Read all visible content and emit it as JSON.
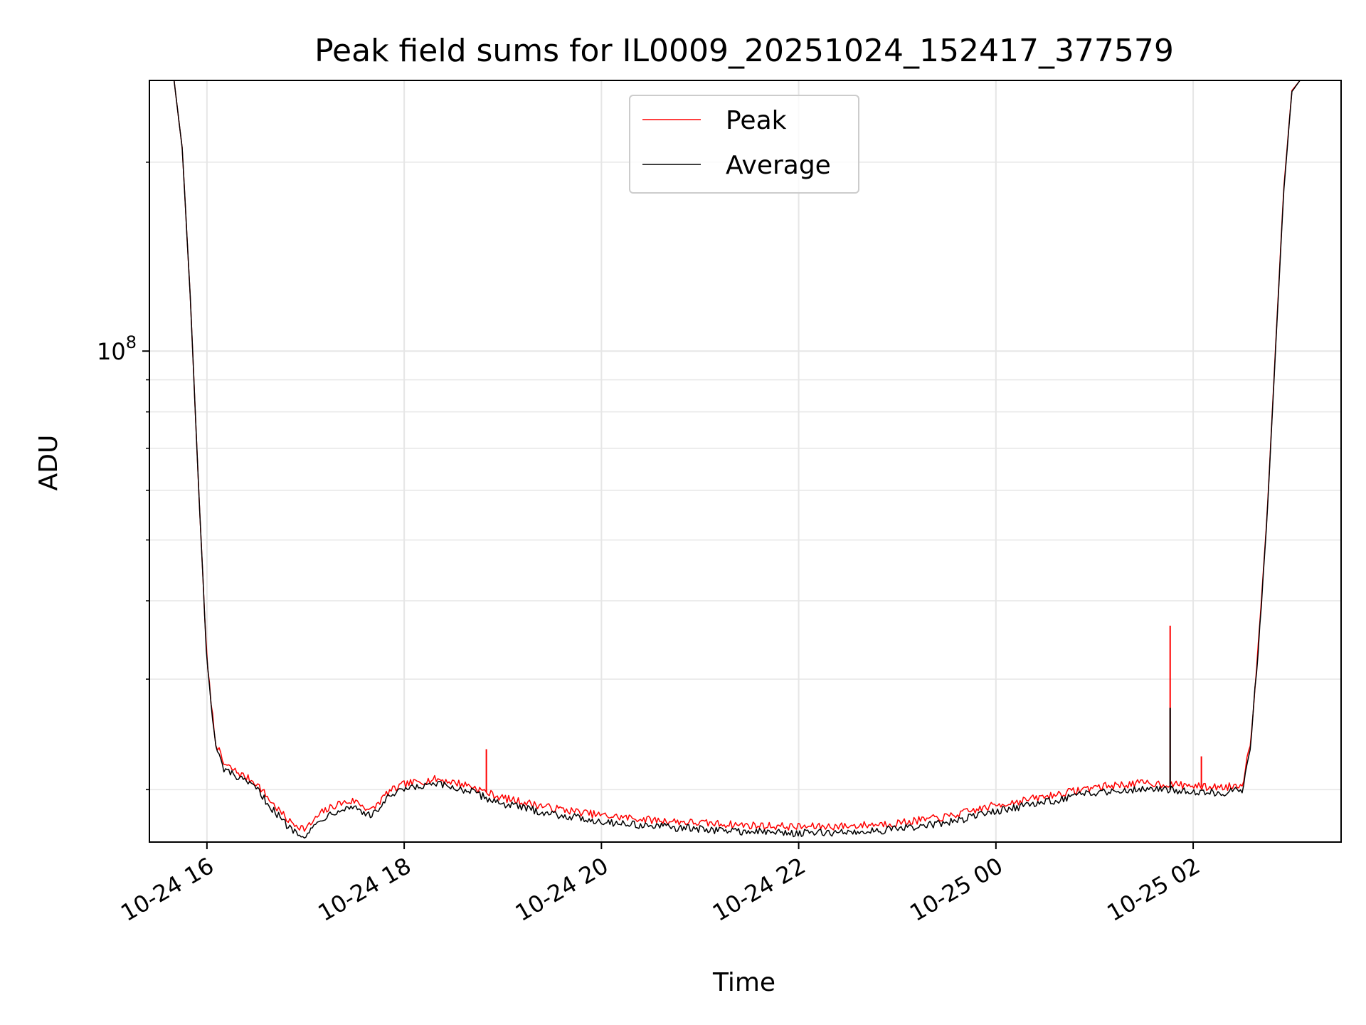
{
  "chart_data": {
    "type": "line",
    "title": "Peak field sums for IL0009_20251024_152417_377579",
    "xlabel": "Time",
    "ylabel": "ADU",
    "y_scale": "log",
    "grid": true,
    "legend_position": "top-center",
    "x_range": [
      "2025-10-24 15:25",
      "2025-10-25 03:30"
    ],
    "ylim": [
      16500000,
      270000000
    ],
    "x_ticks": [
      {
        "label": "10-24 16",
        "value": "2025-10-24 16:00"
      },
      {
        "label": "10-24 18",
        "value": "2025-10-24 18:00"
      },
      {
        "label": "10-24 20",
        "value": "2025-10-24 20:00"
      },
      {
        "label": "10-24 22",
        "value": "2025-10-24 22:00"
      },
      {
        "label": "10-25 00",
        "value": "2025-10-25 00:00"
      },
      {
        "label": "10-25 02",
        "value": "2025-10-25 02:00"
      }
    ],
    "y_ticks": [
      {
        "base": "10",
        "exp": "8",
        "value": 100000000
      }
    ],
    "x": [
      "2025-10-24 15:40",
      "2025-10-24 15:45",
      "2025-10-24 15:50",
      "2025-10-24 15:55",
      "2025-10-24 16:00",
      "2025-10-24 16:05",
      "2025-10-24 16:10",
      "2025-10-24 16:20",
      "2025-10-24 16:30",
      "2025-10-24 16:40",
      "2025-10-24 16:50",
      "2025-10-24 17:00",
      "2025-10-24 17:10",
      "2025-10-24 17:20",
      "2025-10-24 17:30",
      "2025-10-24 17:40",
      "2025-10-24 17:50",
      "2025-10-24 18:00",
      "2025-10-24 18:20",
      "2025-10-24 18:40",
      "2025-10-24 18:50",
      "2025-10-24 19:00",
      "2025-10-24 19:30",
      "2025-10-24 20:00",
      "2025-10-24 20:30",
      "2025-10-24 21:00",
      "2025-10-24 21:30",
      "2025-10-24 22:00",
      "2025-10-24 22:30",
      "2025-10-24 23:00",
      "2025-10-24 23:30",
      "2025-10-25 00:00",
      "2025-10-25 00:30",
      "2025-10-25 01:00",
      "2025-10-25 01:30",
      "2025-10-25 01:45",
      "2025-10-25 02:00",
      "2025-10-25 02:05",
      "2025-10-25 02:20",
      "2025-10-25 02:30",
      "2025-10-25 02:35",
      "2025-10-25 02:40",
      "2025-10-25 02:45",
      "2025-10-25 02:50",
      "2025-10-25 02:55",
      "2025-10-25 03:00",
      "2025-10-25 03:05"
    ],
    "series": [
      {
        "name": "Peak",
        "color": "#ff0000",
        "values": [
          270000000,
          210000000,
          120000000,
          60000000,
          32000000,
          24000000,
          22000000,
          21200000,
          20500000,
          19000000,
          17800000,
          17300000,
          18400000,
          19000000,
          19200000,
          18500000,
          19800000,
          20400000,
          20800000,
          20300000,
          19800000,
          19400000,
          18700000,
          18200000,
          17900000,
          17700000,
          17550000,
          17450000,
          17500000,
          17700000,
          18100000,
          18900000,
          19500000,
          20200000,
          20500000,
          20400000,
          20300000,
          20200000,
          20200000,
          20400000,
          24000000,
          35000000,
          55000000,
          100000000,
          180000000,
          260000000,
          270000000
        ]
      },
      {
        "name": "Average",
        "color": "#000000",
        "values": [
          270000000,
          210000000,
          120000000,
          60000000,
          32000000,
          23600000,
          21600000,
          20800000,
          20100000,
          18600000,
          17400000,
          16900000,
          18000000,
          18600000,
          18800000,
          18100000,
          19400000,
          20000000,
          20400000,
          19900000,
          19400000,
          19000000,
          18300000,
          17800000,
          17500000,
          17300000,
          17150000,
          17050000,
          17100000,
          17300000,
          17700000,
          18500000,
          19100000,
          19800000,
          20100000,
          20000000,
          19900000,
          19800000,
          19800000,
          20000000,
          23600000,
          34500000,
          54500000,
          99000000,
          178000000,
          259000000,
          270000000
        ]
      }
    ],
    "spikes": [
      {
        "series": "Peak",
        "x": "2025-10-24 18:50",
        "value": 23200000
      },
      {
        "series": "Peak",
        "x": "2025-10-25 01:46",
        "value": 36500000
      },
      {
        "series": "Average",
        "x": "2025-10-25 01:46",
        "value": 27000000
      },
      {
        "series": "Peak",
        "x": "2025-10-25 02:05",
        "value": 22600000
      }
    ]
  }
}
